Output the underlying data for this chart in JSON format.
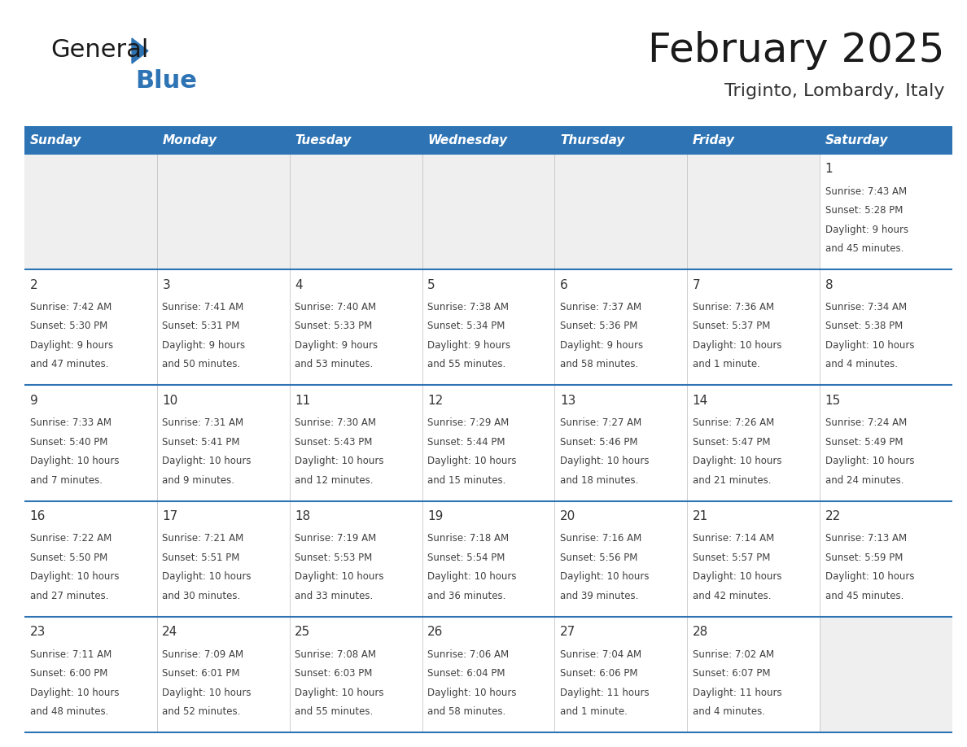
{
  "title": "February 2025",
  "subtitle": "Triginto, Lombardy, Italy",
  "days_of_week": [
    "Sunday",
    "Monday",
    "Tuesday",
    "Wednesday",
    "Thursday",
    "Friday",
    "Saturday"
  ],
  "header_bg": "#2E74B5",
  "header_text": "#FFFFFF",
  "cell_bg_light": "#EFEFEF",
  "cell_bg_white": "#FFFFFF",
  "separator_color": "#2E74B5",
  "text_color": "#404040",
  "day_number_color": "#333333",
  "calendar_data": [
    [
      null,
      null,
      null,
      null,
      null,
      null,
      {
        "day": 1,
        "sunrise": "7:43 AM",
        "sunset": "5:28 PM",
        "daylight": "9 hours and 45 minutes."
      }
    ],
    [
      {
        "day": 2,
        "sunrise": "7:42 AM",
        "sunset": "5:30 PM",
        "daylight": "9 hours and 47 minutes."
      },
      {
        "day": 3,
        "sunrise": "7:41 AM",
        "sunset": "5:31 PM",
        "daylight": "9 hours and 50 minutes."
      },
      {
        "day": 4,
        "sunrise": "7:40 AM",
        "sunset": "5:33 PM",
        "daylight": "9 hours and 53 minutes."
      },
      {
        "day": 5,
        "sunrise": "7:38 AM",
        "sunset": "5:34 PM",
        "daylight": "9 hours and 55 minutes."
      },
      {
        "day": 6,
        "sunrise": "7:37 AM",
        "sunset": "5:36 PM",
        "daylight": "9 hours and 58 minutes."
      },
      {
        "day": 7,
        "sunrise": "7:36 AM",
        "sunset": "5:37 PM",
        "daylight": "10 hours and 1 minute."
      },
      {
        "day": 8,
        "sunrise": "7:34 AM",
        "sunset": "5:38 PM",
        "daylight": "10 hours and 4 minutes."
      }
    ],
    [
      {
        "day": 9,
        "sunrise": "7:33 AM",
        "sunset": "5:40 PM",
        "daylight": "10 hours and 7 minutes."
      },
      {
        "day": 10,
        "sunrise": "7:31 AM",
        "sunset": "5:41 PM",
        "daylight": "10 hours and 9 minutes."
      },
      {
        "day": 11,
        "sunrise": "7:30 AM",
        "sunset": "5:43 PM",
        "daylight": "10 hours and 12 minutes."
      },
      {
        "day": 12,
        "sunrise": "7:29 AM",
        "sunset": "5:44 PM",
        "daylight": "10 hours and 15 minutes."
      },
      {
        "day": 13,
        "sunrise": "7:27 AM",
        "sunset": "5:46 PM",
        "daylight": "10 hours and 18 minutes."
      },
      {
        "day": 14,
        "sunrise": "7:26 AM",
        "sunset": "5:47 PM",
        "daylight": "10 hours and 21 minutes."
      },
      {
        "day": 15,
        "sunrise": "7:24 AM",
        "sunset": "5:49 PM",
        "daylight": "10 hours and 24 minutes."
      }
    ],
    [
      {
        "day": 16,
        "sunrise": "7:22 AM",
        "sunset": "5:50 PM",
        "daylight": "10 hours and 27 minutes."
      },
      {
        "day": 17,
        "sunrise": "7:21 AM",
        "sunset": "5:51 PM",
        "daylight": "10 hours and 30 minutes."
      },
      {
        "day": 18,
        "sunrise": "7:19 AM",
        "sunset": "5:53 PM",
        "daylight": "10 hours and 33 minutes."
      },
      {
        "day": 19,
        "sunrise": "7:18 AM",
        "sunset": "5:54 PM",
        "daylight": "10 hours and 36 minutes."
      },
      {
        "day": 20,
        "sunrise": "7:16 AM",
        "sunset": "5:56 PM",
        "daylight": "10 hours and 39 minutes."
      },
      {
        "day": 21,
        "sunrise": "7:14 AM",
        "sunset": "5:57 PM",
        "daylight": "10 hours and 42 minutes."
      },
      {
        "day": 22,
        "sunrise": "7:13 AM",
        "sunset": "5:59 PM",
        "daylight": "10 hours and 45 minutes."
      }
    ],
    [
      {
        "day": 23,
        "sunrise": "7:11 AM",
        "sunset": "6:00 PM",
        "daylight": "10 hours and 48 minutes."
      },
      {
        "day": 24,
        "sunrise": "7:09 AM",
        "sunset": "6:01 PM",
        "daylight": "10 hours and 52 minutes."
      },
      {
        "day": 25,
        "sunrise": "7:08 AM",
        "sunset": "6:03 PM",
        "daylight": "10 hours and 55 minutes."
      },
      {
        "day": 26,
        "sunrise": "7:06 AM",
        "sunset": "6:04 PM",
        "daylight": "10 hours and 58 minutes."
      },
      {
        "day": 27,
        "sunrise": "7:04 AM",
        "sunset": "6:06 PM",
        "daylight": "11 hours and 1 minute."
      },
      {
        "day": 28,
        "sunrise": "7:02 AM",
        "sunset": "6:07 PM",
        "daylight": "11 hours and 4 minutes."
      },
      null
    ]
  ],
  "logo_text1": "General",
  "logo_text2": "Blue",
  "logo_color1": "#1a1a1a",
  "logo_color2": "#2E74B5",
  "logo_triangle_color": "#2E74B5",
  "title_fontsize": 36,
  "subtitle_fontsize": 16,
  "header_fontsize": 11,
  "day_num_fontsize": 11,
  "cell_text_fontsize": 8.5
}
